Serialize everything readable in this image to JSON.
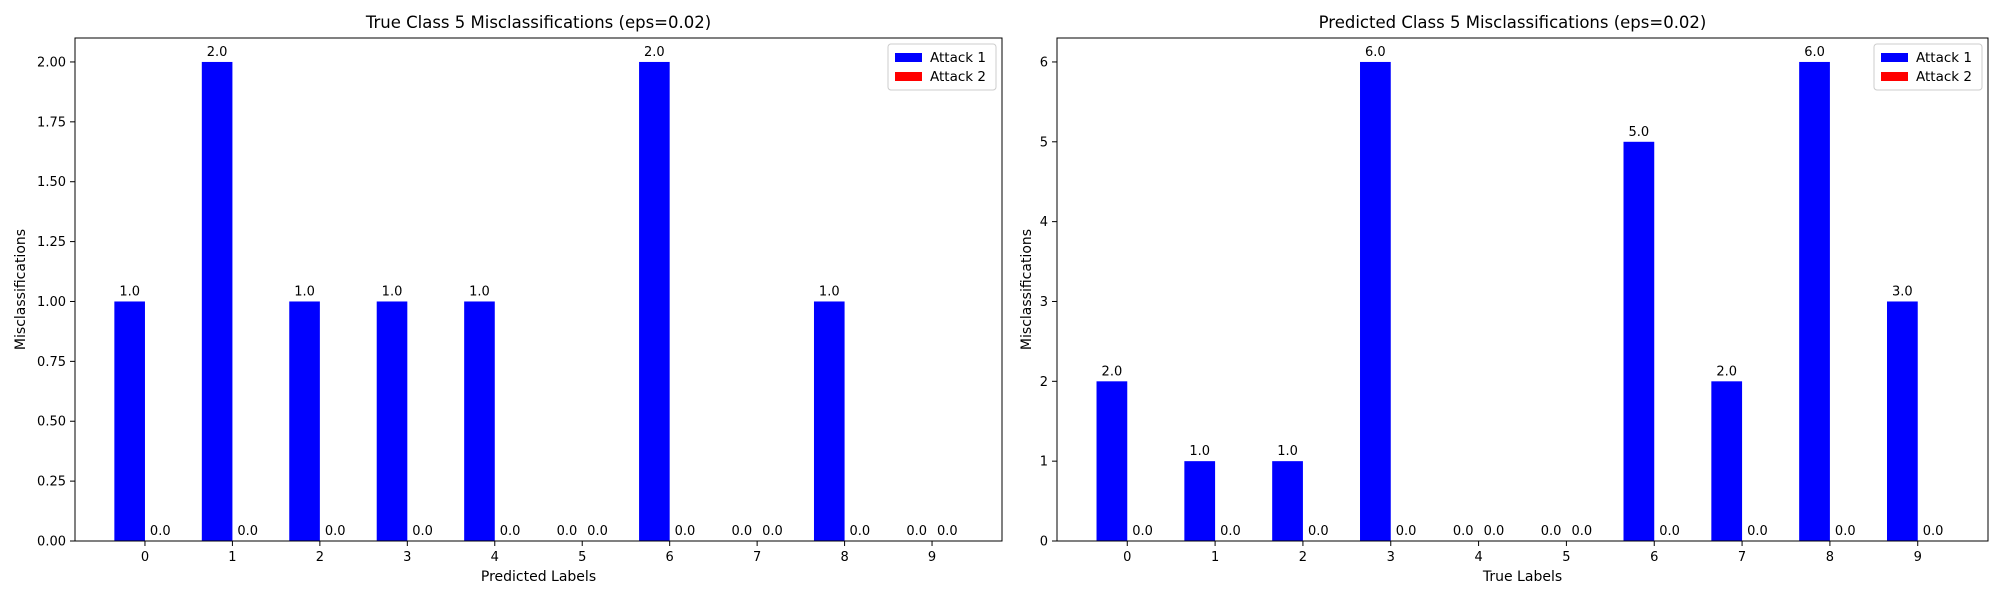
{
  "figure": {
    "background": "#ffffff"
  },
  "chart_data": [
    {
      "type": "bar",
      "title": "True Class 5 Misclassifications (eps=0.02)",
      "xlabel": "Predicted Labels",
      "ylabel": "Misclassifications",
      "categories": [
        "0",
        "1",
        "2",
        "3",
        "4",
        "5",
        "6",
        "7",
        "8",
        "9"
      ],
      "ylim": [
        0,
        2.1
      ],
      "yticks": [
        0.0,
        0.25,
        0.5,
        0.75,
        1.0,
        1.25,
        1.5,
        1.75,
        2.0
      ],
      "ytick_labels": [
        "0.00",
        "0.25",
        "0.50",
        "0.75",
        "1.00",
        "1.25",
        "1.50",
        "1.75",
        "2.00"
      ],
      "series": [
        {
          "name": "Attack 1",
          "color": "#0000ff",
          "values": [
            1.0,
            2.0,
            1.0,
            1.0,
            1.0,
            0.0,
            2.0,
            0.0,
            1.0,
            0.0
          ],
          "data_labels": [
            "1.0",
            "2.0",
            "1.0",
            "1.0",
            "1.0",
            "0.0",
            "2.0",
            "0.0",
            "1.0",
            "0.0"
          ]
        },
        {
          "name": "Attack 2",
          "color": "#ff0000",
          "values": [
            0.0,
            0.0,
            0.0,
            0.0,
            0.0,
            0.0,
            0.0,
            0.0,
            0.0,
            0.0
          ],
          "data_labels": [
            "0.0",
            "0.0",
            "0.0",
            "0.0",
            "0.0",
            "0.0",
            "0.0",
            "0.0",
            "0.0",
            "0.0"
          ]
        }
      ],
      "legend": "top-right",
      "grid": false
    },
    {
      "type": "bar",
      "title": "Predicted Class 5 Misclassifications (eps=0.02)",
      "xlabel": "True Labels",
      "ylabel": "Misclassifications",
      "categories": [
        "0",
        "1",
        "2",
        "3",
        "4",
        "5",
        "6",
        "7",
        "8",
        "9"
      ],
      "ylim": [
        0,
        6.3
      ],
      "yticks": [
        0,
        1,
        2,
        3,
        4,
        5,
        6
      ],
      "ytick_labels": [
        "0",
        "1",
        "2",
        "3",
        "4",
        "5",
        "6"
      ],
      "series": [
        {
          "name": "Attack 1",
          "color": "#0000ff",
          "values": [
            2.0,
            1.0,
            1.0,
            6.0,
            0.0,
            0.0,
            5.0,
            2.0,
            6.0,
            3.0
          ],
          "data_labels": [
            "2.0",
            "1.0",
            "1.0",
            "6.0",
            "0.0",
            "0.0",
            "5.0",
            "2.0",
            "6.0",
            "3.0"
          ]
        },
        {
          "name": "Attack 2",
          "color": "#ff0000",
          "values": [
            0.0,
            0.0,
            0.0,
            0.0,
            0.0,
            0.0,
            0.0,
            0.0,
            0.0,
            0.0
          ],
          "data_labels": [
            "0.0",
            "0.0",
            "0.0",
            "0.0",
            "0.0",
            "0.0",
            "0.0",
            "0.0",
            "0.0",
            "0.0"
          ]
        }
      ],
      "legend": "top-right",
      "grid": false
    }
  ]
}
